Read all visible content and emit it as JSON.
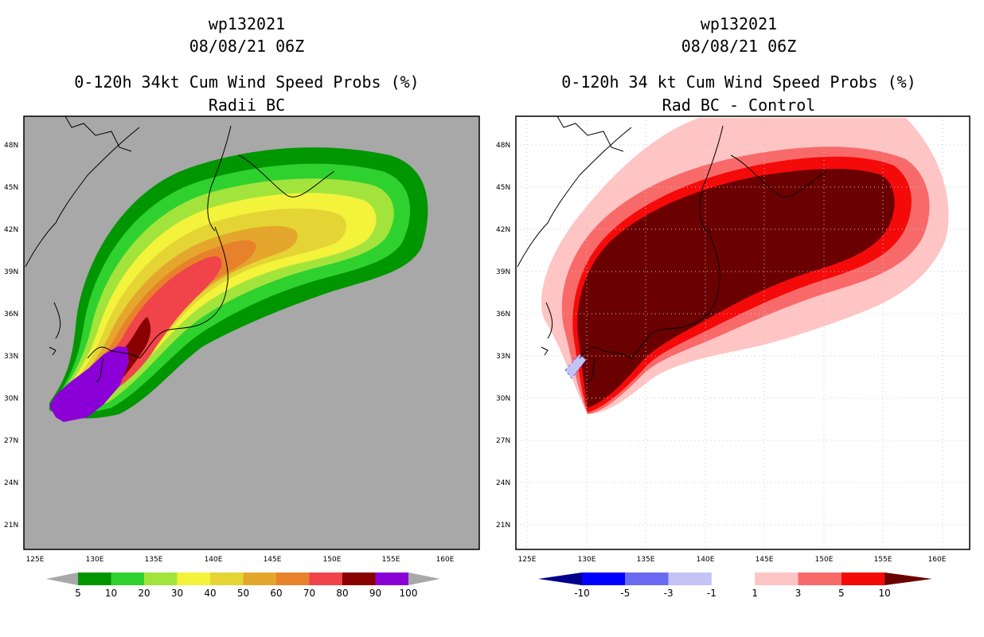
{
  "left": {
    "id_line": "wp132021",
    "date_line": "08/08/21 06Z",
    "title_line": "0-120h 34kt Cum Wind Speed Probs (%)",
    "subtitle_line": "Radii BC",
    "lat_labels": [
      "48N",
      "45N",
      "42N",
      "39N",
      "36N",
      "33N",
      "30N",
      "27N",
      "24N",
      "21N"
    ],
    "lon_labels": [
      "125E",
      "130E",
      "135E",
      "140E",
      "145E",
      "150E",
      "155E",
      "160E"
    ],
    "colorbar": {
      "levels": [
        "5",
        "10",
        "20",
        "30",
        "40",
        "50",
        "60",
        "70",
        "80",
        "90",
        "100"
      ],
      "colors": [
        "#009600",
        "#2fd12f",
        "#a3e43c",
        "#f3f33c",
        "#e4d535",
        "#e5a62d",
        "#e8812c",
        "#f0434a",
        "#880000",
        "#8b00d6"
      ],
      "end_color": "#a8a8a8"
    }
  },
  "right": {
    "id_line": "wp132021",
    "date_line": "08/08/21 06Z",
    "title_line": "0-120h 34 kt Cum Wind Speed Probs (%)",
    "subtitle_line": "Rad BC - Control",
    "lat_labels": [
      "48N",
      "45N",
      "42N",
      "39N",
      "36N",
      "33N",
      "30N",
      "27N",
      "24N",
      "21N"
    ],
    "lon_labels": [
      "125E",
      "130E",
      "135E",
      "140E",
      "145E",
      "150E",
      "155E",
      "160E"
    ],
    "colorbar": {
      "levels": [
        "-10",
        "-5",
        "-3",
        "-1",
        "1",
        "3",
        "5",
        "10"
      ],
      "colors": [
        "#0000ff",
        "#6a6af2",
        "#c3c3f5",
        "#ffffff",
        "#ffc4c4",
        "#f86a6a",
        "#f50a0a"
      ],
      "low_end_color": "#00008b",
      "high_end_color": "#6b0000"
    }
  }
}
